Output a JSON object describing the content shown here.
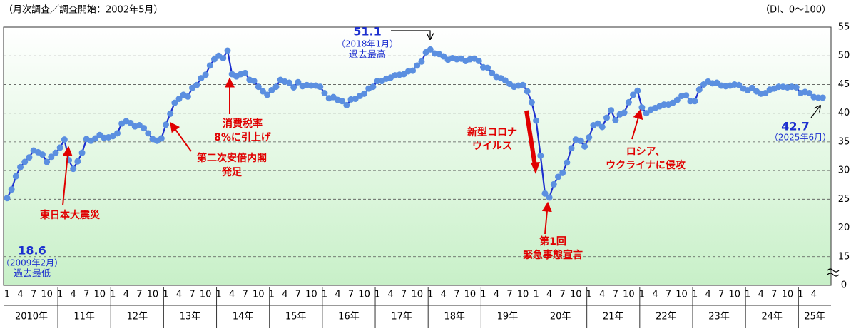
{
  "chart_data": {
    "type": "line",
    "title": "（月次調査／調査開始：2002年5月）",
    "y_unit_label": "（DI、0〜100）",
    "y_axis_bottom_label": "0",
    "ylim": [
      10,
      55
    ],
    "yticks": [
      15,
      20,
      25,
      30,
      35,
      40,
      45,
      50,
      55
    ],
    "grid": true,
    "years": [
      {
        "label": "2010年",
        "months": [
          1,
          4,
          7,
          10
        ]
      },
      {
        "label": "11年",
        "months": [
          1,
          4,
          7,
          10
        ]
      },
      {
        "label": "12年",
        "months": [
          1,
          4,
          7,
          10
        ]
      },
      {
        "label": "13年",
        "months": [
          1,
          4,
          7,
          10
        ]
      },
      {
        "label": "14年",
        "months": [
          1,
          4,
          7,
          10
        ]
      },
      {
        "label": "15年",
        "months": [
          1,
          4,
          7,
          10
        ]
      },
      {
        "label": "16年",
        "months": [
          1,
          4,
          7,
          10
        ]
      },
      {
        "label": "17年",
        "months": [
          1,
          4,
          7,
          10
        ]
      },
      {
        "label": "18年",
        "months": [
          1,
          4,
          7,
          10
        ]
      },
      {
        "label": "19年",
        "months": [
          1,
          4,
          7,
          10
        ]
      },
      {
        "label": "20年",
        "months": [
          1,
          4,
          7,
          10
        ]
      },
      {
        "label": "21年",
        "months": [
          1,
          4,
          7,
          10
        ]
      },
      {
        "label": "22年",
        "months": [
          1,
          4,
          7,
          10
        ]
      },
      {
        "label": "23年",
        "months": [
          1,
          4,
          7,
          10
        ]
      },
      {
        "label": "24年",
        "months": [
          1,
          4,
          7,
          10
        ]
      },
      {
        "label": "25年",
        "months": [
          1,
          4
        ]
      }
    ],
    "series": [
      {
        "color": "#1c2fcf",
        "marker_color": "#5b8fe0",
        "values": [
          25.2,
          26.7,
          29.0,
          30.6,
          31.5,
          32.3,
          33.5,
          33.2,
          32.8,
          31.5,
          32.4,
          33.1,
          34.0,
          35.4,
          31.8,
          30.3,
          31.6,
          33.1,
          35.5,
          35.2,
          35.6,
          36.2,
          35.7,
          35.8,
          36.0,
          36.5,
          38.2,
          38.6,
          38.3,
          37.7,
          37.9,
          37.4,
          36.5,
          35.5,
          35.2,
          35.6,
          38.0,
          39.9,
          41.8,
          42.5,
          43.2,
          42.9,
          44.4,
          44.9,
          46.1,
          46.7,
          48.3,
          49.4,
          50.0,
          49.6,
          50.9,
          46.8,
          46.4,
          46.8,
          47.0,
          45.8,
          45.6,
          44.6,
          43.8,
          43.2,
          44.0,
          44.6,
          45.8,
          45.5,
          45.3,
          44.5,
          45.4,
          44.7,
          44.9,
          44.8,
          44.8,
          44.6,
          43.5,
          42.6,
          42.8,
          42.3,
          42.1,
          41.4,
          42.4,
          42.5,
          43.0,
          43.4,
          44.3,
          44.6,
          45.6,
          45.6,
          46.0,
          46.2,
          46.6,
          46.7,
          46.8,
          47.3,
          47.4,
          48.3,
          49.0,
          50.6,
          51.1,
          50.4,
          50.3,
          49.9,
          49.3,
          49.6,
          49.4,
          49.5,
          49.1,
          49.4,
          49.5,
          49.1,
          48.0,
          47.9,
          47.0,
          46.3,
          46.1,
          45.7,
          45.1,
          44.6,
          44.8,
          44.9,
          43.8,
          41.9,
          38.7,
          32.6,
          26.0,
          25.3,
          27.6,
          28.9,
          29.6,
          31.4,
          33.9,
          35.4,
          35.2,
          34.2,
          35.8,
          37.9,
          38.2,
          37.6,
          39.2,
          40.5,
          38.8,
          39.8,
          40.1,
          41.9,
          43.2,
          43.9,
          41.0,
          40.0,
          40.6,
          40.9,
          41.2,
          41.5,
          41.5,
          41.8,
          42.3,
          43.0,
          43.1,
          42.1,
          42.1,
          44.1,
          45.0,
          45.5,
          45.2,
          45.3,
          44.8,
          44.7,
          44.8,
          45.0,
          44.9,
          44.3,
          44.0,
          44.4,
          43.8,
          43.4,
          43.5,
          44.1,
          44.3,
          44.6,
          44.6,
          44.5,
          44.6,
          44.5,
          43.5,
          43.7,
          43.5,
          42.8,
          42.7,
          42.7
        ]
      }
    ],
    "annotations": [
      "51.1",
      "（2018年1月）",
      "過去最高",
      "18.6",
      "（2009年2月）",
      "過去最低",
      "42.7",
      "（2025年6月）",
      "東日本大震災",
      "第二次安倍内閣",
      "発足",
      "消費税率",
      "8%に引上げ",
      "新型コロナ",
      "ウイルス",
      "第1回",
      "緊急事態宣言",
      "ロシア、",
      "ウクライナに侵攻"
    ]
  }
}
